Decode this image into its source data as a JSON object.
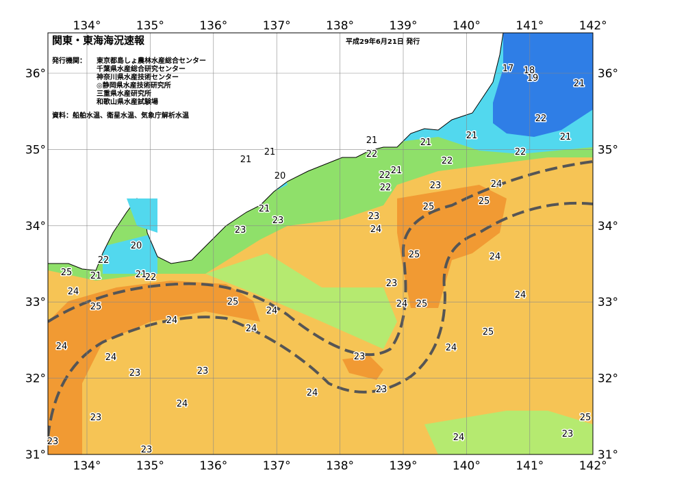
{
  "header": {
    "title": "関東・東海海況速報",
    "date": "平成29年6月21日 発行",
    "issuer_label": "発行機関：",
    "issuers": [
      "東京都島しょ農林水産総合センター",
      "千葉県水産総合研究センター",
      "神奈川県水産技術センター",
      "◎静岡県水産技術研究所",
      "三重県水産研究所",
      "和歌山県水産試験場"
    ],
    "source": "資料：船舶水温、衛星水温、気象庁解析水温"
  },
  "map": {
    "lon_labels": [
      "134°",
      "135°",
      "136°",
      "137°",
      "138°",
      "139°",
      "140°",
      "141°",
      "142°"
    ],
    "lat_labels": [
      "36°",
      "35°",
      "34°",
      "33°",
      "32°",
      "31°"
    ],
    "isotherm_labels": [
      "17",
      "18",
      "19",
      "21",
      "22",
      "21",
      "21",
      "21",
      "22",
      "22",
      "21",
      "22",
      "21",
      "21",
      "20",
      "21",
      "22",
      "22",
      "23",
      "24",
      "25",
      "25",
      "21",
      "23",
      "23",
      "24",
      "23",
      "20",
      "22",
      "25",
      "24",
      "21",
      "21",
      "22",
      "25",
      "24",
      "23",
      "24",
      "25",
      "25",
      "24",
      "24",
      "25",
      "24",
      "24",
      "25",
      "24",
      "24",
      "24",
      "23",
      "23",
      "23",
      "24",
      "23",
      "24",
      "23",
      "25",
      "23",
      "23",
      "24",
      "23"
    ]
  }
}
